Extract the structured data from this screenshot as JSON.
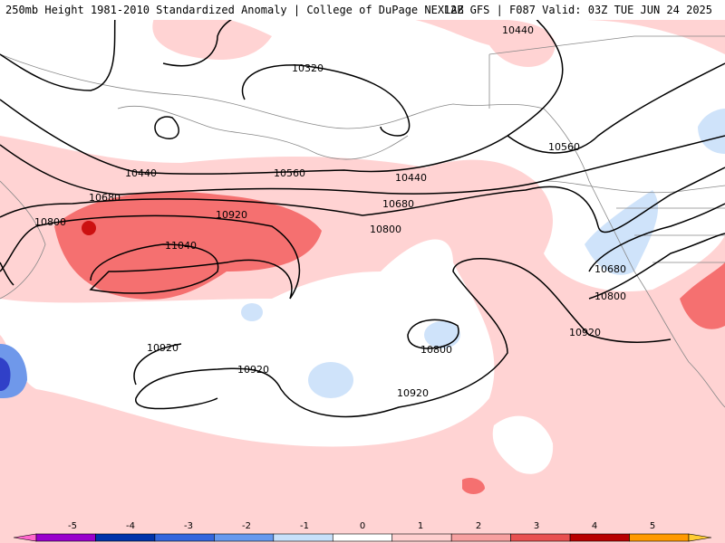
{
  "header": {
    "left_title": "250mb Height 1981-2010 Standardized Anomaly | College of DuPage NEXLAB",
    "right_title": "12Z GFS | F087 Valid: 03Z TUE JUN 24 2025"
  },
  "contour_labels": [
    {
      "id": "c1",
      "text": "10440"
    },
    {
      "id": "c2",
      "text": "10320"
    },
    {
      "id": "c3",
      "text": "10440"
    },
    {
      "id": "c4",
      "text": "10560"
    },
    {
      "id": "c5",
      "text": "10440"
    },
    {
      "id": "c6",
      "text": "10560"
    },
    {
      "id": "c7",
      "text": "10680"
    },
    {
      "id": "c8",
      "text": "10680"
    },
    {
      "id": "c9",
      "text": "10800"
    },
    {
      "id": "c10",
      "text": "10920"
    },
    {
      "id": "c11",
      "text": "10800"
    },
    {
      "id": "c12",
      "text": "11040"
    },
    {
      "id": "c13",
      "text": "10680"
    },
    {
      "id": "c14",
      "text": "10800"
    },
    {
      "id": "c15",
      "text": "10920"
    },
    {
      "id": "c16",
      "text": "10920"
    },
    {
      "id": "c17",
      "text": "10920"
    },
    {
      "id": "c18",
      "text": "10800"
    },
    {
      "id": "c19",
      "text": "10920"
    }
  ],
  "colorbar": {
    "labels": [
      "-5",
      "-4",
      "-3",
      "-2",
      "-1",
      "0",
      "1",
      "2",
      "3",
      "4",
      "5"
    ],
    "colors": [
      "#ff66cc",
      "#9900cc",
      "#0033aa",
      "#3366dd",
      "#6699ee",
      "#c8e0fa",
      "#ffffff",
      "#ffd0d0",
      "#f7a0a0",
      "#e85050",
      "#b80000",
      "#ff9900",
      "#ffcc33"
    ]
  }
}
